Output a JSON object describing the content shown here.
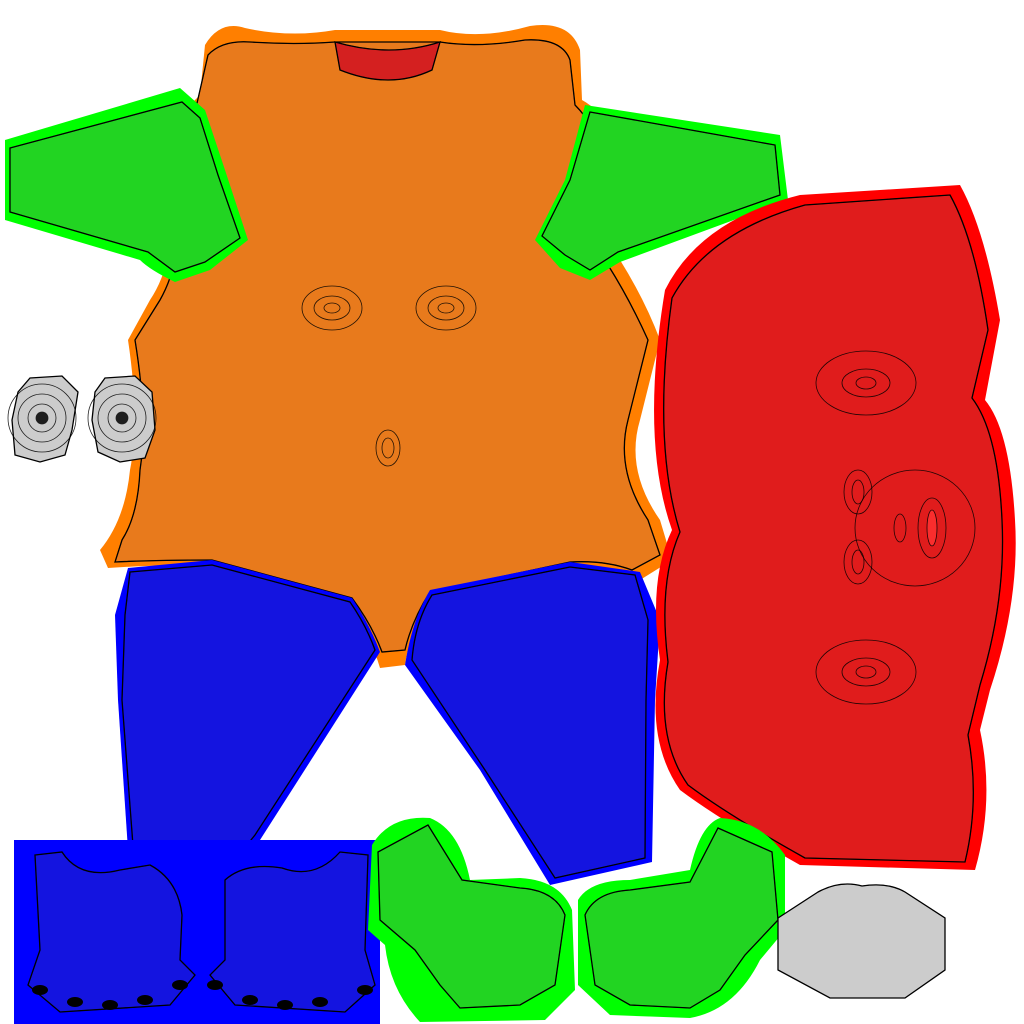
{
  "texture": {
    "background": "#ffffff",
    "wire_color": "#000000",
    "islands": [
      {
        "id": "torso",
        "fill": "#e87a1c",
        "bleed": "#ff7f00"
      },
      {
        "id": "neck-collar",
        "fill": "#d42020",
        "bleed": "#ff0000"
      },
      {
        "id": "arm-left",
        "fill": "#22d422",
        "bleed": "#00ff00"
      },
      {
        "id": "arm-right",
        "fill": "#22d422",
        "bleed": "#00ff00"
      },
      {
        "id": "leg-left",
        "fill": "#1414e0",
        "bleed": "#0000ff"
      },
      {
        "id": "leg-right",
        "fill": "#1414e0",
        "bleed": "#0000ff"
      },
      {
        "id": "head",
        "fill": "#e01c1c",
        "bleed": "#ff0000"
      },
      {
        "id": "eye-left",
        "fill": "#cccccc",
        "bleed": null
      },
      {
        "id": "eye-right",
        "fill": "#cccccc",
        "bleed": null
      },
      {
        "id": "foot-left",
        "fill": "#1414e0",
        "bleed": "#0000ff"
      },
      {
        "id": "foot-right",
        "fill": "#1414e0",
        "bleed": "#0000ff"
      },
      {
        "id": "hand-left",
        "fill": "#22d422",
        "bleed": "#00ff00"
      },
      {
        "id": "hand-right",
        "fill": "#22d422",
        "bleed": "#00ff00"
      },
      {
        "id": "teeth",
        "fill": "#cccccc",
        "bleed": null
      }
    ]
  }
}
